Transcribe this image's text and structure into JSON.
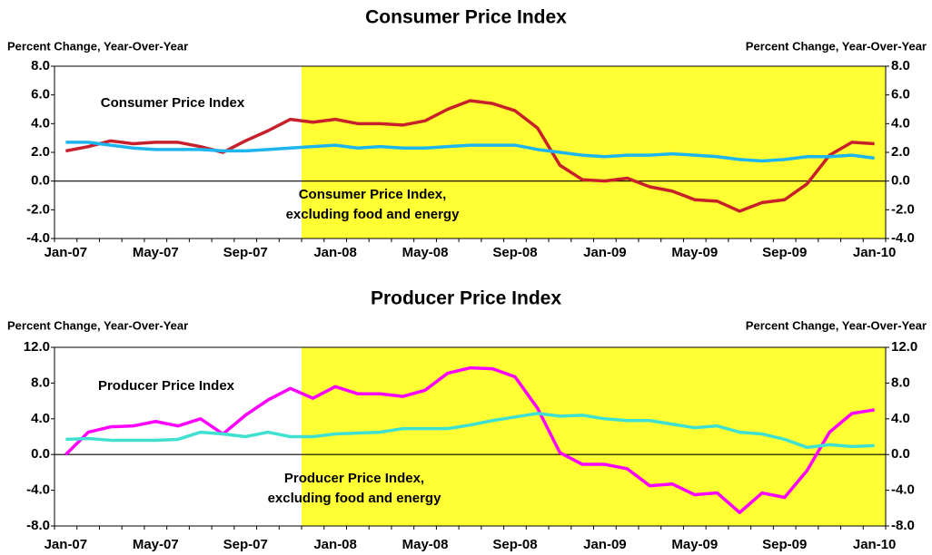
{
  "chart_data": [
    {
      "type": "line",
      "title": "Consumer Price Index",
      "ylabel": "Percent Change, Year-Over-Year",
      "categories": [
        "Jan-07",
        null,
        null,
        null,
        "May-07",
        null,
        null,
        null,
        "Sep-07",
        null,
        null,
        null,
        "Jan-08",
        null,
        null,
        null,
        "May-08",
        null,
        null,
        null,
        "Sep-08",
        null,
        null,
        null,
        "Jan-09",
        null,
        null,
        null,
        "May-09",
        null,
        null,
        null,
        "Sep-09",
        null,
        null,
        null,
        "Jan-10"
      ],
      "series": [
        {
          "name": "Consumer Price Index",
          "color": "#c8202a",
          "values": [
            2.1,
            2.4,
            2.8,
            2.6,
            2.7,
            2.7,
            2.4,
            2.0,
            2.8,
            3.5,
            4.3,
            4.1,
            4.3,
            4.0,
            4.0,
            3.9,
            4.2,
            5.0,
            5.6,
            5.4,
            4.9,
            3.7,
            1.1,
            0.1,
            0.0,
            0.2,
            -0.4,
            -0.7,
            -1.3,
            -1.4,
            -2.1,
            -1.5,
            -1.3,
            -0.2,
            1.8,
            2.7,
            2.6
          ]
        },
        {
          "name": "Consumer Price Index,\nexcluding food and energy",
          "color": "#1eb4ee",
          "values": [
            2.7,
            2.7,
            2.5,
            2.3,
            2.2,
            2.2,
            2.2,
            2.1,
            2.1,
            2.2,
            2.3,
            2.4,
            2.5,
            2.3,
            2.4,
            2.3,
            2.3,
            2.4,
            2.5,
            2.5,
            2.5,
            2.2,
            2.0,
            1.8,
            1.7,
            1.8,
            1.8,
            1.9,
            1.8,
            1.7,
            1.5,
            1.4,
            1.5,
            1.7,
            1.7,
            1.8,
            1.6
          ]
        }
      ],
      "ylim": [
        -4,
        8
      ],
      "yticks": [
        {
          "value": -4,
          "label": "-4.0"
        },
        {
          "value": -2,
          "label": "-2.0"
        },
        {
          "value": 0,
          "label": "0.0"
        },
        {
          "value": 2,
          "label": "2.0"
        },
        {
          "value": 4,
          "label": "4.0"
        },
        {
          "value": 6,
          "label": "6.0"
        },
        {
          "value": 8,
          "label": "8.0"
        }
      ],
      "shaded_region": [
        11,
        36
      ],
      "shade_color": "#ffff33"
    },
    {
      "type": "line",
      "title": "Producer Price Index",
      "ylabel": "Percent Change, Year-Over-Year",
      "categories": [
        "Jan-07",
        null,
        null,
        null,
        "May-07",
        null,
        null,
        null,
        "Sep-07",
        null,
        null,
        null,
        "Jan-08",
        null,
        null,
        null,
        "May-08",
        null,
        null,
        null,
        "Sep-08",
        null,
        null,
        null,
        "Jan-09",
        null,
        null,
        null,
        "May-09",
        null,
        null,
        null,
        "Sep-09",
        null,
        null,
        null,
        "Jan-10"
      ],
      "series": [
        {
          "name": "Producer Price Index",
          "color": "#ff00ff",
          "values": [
            0.0,
            2.5,
            3.1,
            3.2,
            3.7,
            3.2,
            4.0,
            2.3,
            4.4,
            6.1,
            7.4,
            6.3,
            7.6,
            6.8,
            6.8,
            6.5,
            7.2,
            9.1,
            9.7,
            9.6,
            8.7,
            5.2,
            0.2,
            -1.1,
            -1.1,
            -1.6,
            -3.5,
            -3.3,
            -4.5,
            -4.3,
            -6.5,
            -4.3,
            -4.8,
            -1.8,
            2.5,
            4.6,
            5.0
          ]
        },
        {
          "name": "Producer Price Index,\nexcluding food and energy",
          "color": "#40e0d0",
          "values": [
            1.7,
            1.8,
            1.6,
            1.6,
            1.6,
            1.7,
            2.5,
            2.3,
            2.0,
            2.5,
            2.0,
            2.0,
            2.3,
            2.4,
            2.5,
            2.9,
            2.9,
            2.9,
            3.3,
            3.8,
            4.2,
            4.6,
            4.3,
            4.4,
            4.0,
            3.8,
            3.8,
            3.4,
            3.0,
            3.2,
            2.5,
            2.3,
            1.7,
            0.8,
            1.1,
            0.9,
            1.0
          ]
        }
      ],
      "ylim": [
        -8,
        12
      ],
      "yticks": [
        {
          "value": -8,
          "label": "-8.0"
        },
        {
          "value": -4,
          "label": "-4.0"
        },
        {
          "value": 0,
          "label": "0.0"
        },
        {
          "value": 4,
          "label": "4.0"
        },
        {
          "value": 8,
          "label": "8.0"
        },
        {
          "value": 12,
          "label": "12.0"
        }
      ],
      "shaded_region": [
        11,
        36
      ],
      "shade_color": "#ffff33"
    }
  ]
}
